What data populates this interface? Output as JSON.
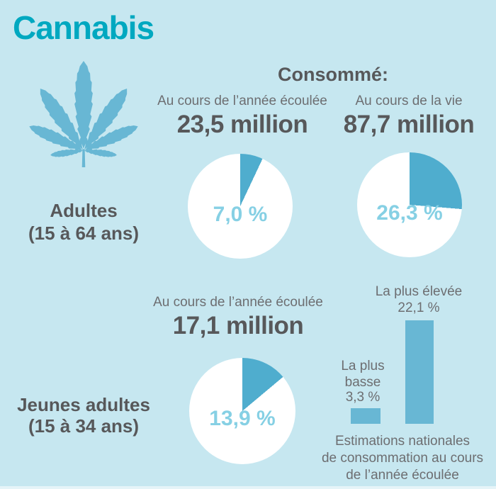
{
  "title": "Cannabis",
  "consumed_header": "Consommé:",
  "sections": {
    "adults": {
      "label_line1": "Adultes",
      "label_line2": "(15 à 64 ans)",
      "pies": [
        {
          "header": "Au cours de l’année écoulée",
          "count": "23,5 million",
          "percent": 7.0,
          "percent_label": "7,0 %"
        },
        {
          "header": "Au cours de la vie",
          "count": "87,7 million",
          "percent": 26.3,
          "percent_label": "26,3 %"
        }
      ]
    },
    "young_adults": {
      "label_line1": "Jeunes adultes",
      "label_line2": "(15 à 34 ans)",
      "pie": {
        "header": "Au cours de l’année écoulée",
        "count": "17,1 million",
        "percent": 13.9,
        "percent_label": "13,9 %"
      },
      "bar_chart": {
        "high_label": "La plus élevée",
        "high_value": 22.1,
        "high_value_label": "22,1 %",
        "low_label_line1": "La plus",
        "low_label_line2": "basse",
        "low_value": 3.3,
        "low_value_label": "3,3 %",
        "caption_line1": "Estimations nationales",
        "caption_line2": "de consommation au cours",
        "caption_line3": "de l’année écoulée"
      }
    }
  },
  "icons": {
    "leaf": "cannabis-leaf-icon"
  },
  "colors": {
    "background": "#c6e7f0",
    "title": "#00a8c0",
    "leaf": "#68b7d4",
    "wedge": "#4fadce",
    "bar": "#68b7d4",
    "pie_bg": "#ffffff",
    "pie_label": "#86d0e4",
    "dark_text": "#57585a",
    "gray_text": "#6d6e71"
  },
  "chart_data": [
    {
      "type": "pie",
      "group": "Adultes (15 à 64 ans)",
      "period": "Au cours de l’année écoulée",
      "count": "23,5 million",
      "percent": 7.0,
      "percent_label": "7,0 %"
    },
    {
      "type": "pie",
      "group": "Adultes (15 à 64 ans)",
      "period": "Au cours de la vie",
      "count": "87,7 million",
      "percent": 26.3,
      "percent_label": "26,3 %"
    },
    {
      "type": "pie",
      "group": "Jeunes adultes (15 à 34 ans)",
      "period": "Au cours de l’année écoulée",
      "count": "17,1 million",
      "percent": 13.9,
      "percent_label": "13,9 %"
    },
    {
      "type": "bar",
      "group": "Jeunes adultes (15 à 34 ans)",
      "title": "Estimations nationales de consommation au cours de l’année écoulée",
      "categories": [
        "La plus basse",
        "La plus élevée"
      ],
      "values": [
        3.3,
        22.1
      ],
      "value_labels": [
        "3,3 %",
        "22,1 %"
      ],
      "unit": "%",
      "ylim": [
        0,
        22.1
      ]
    }
  ]
}
